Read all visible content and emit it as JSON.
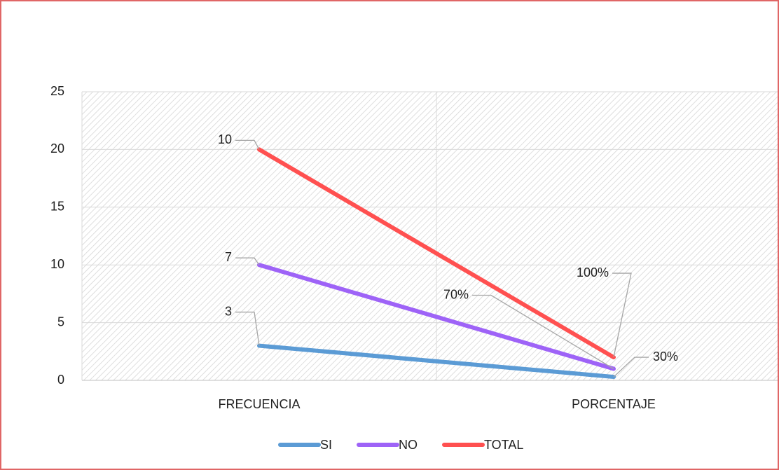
{
  "chart_data": {
    "type": "line",
    "stacked": true,
    "categories": [
      "FRECUENCIA",
      "PORCENTAJE"
    ],
    "series": [
      {
        "name": "SI",
        "color": "#5b9bd5",
        "values": [
          3,
          0.3
        ],
        "value_labels": [
          "3",
          "30%"
        ]
      },
      {
        "name": "NO",
        "color": "#9e63f7",
        "values": [
          7,
          0.7
        ],
        "value_labels": [
          "7",
          "70%"
        ]
      },
      {
        "name": "TOTAL",
        "color": "#ff5050",
        "values": [
          10,
          1
        ],
        "value_labels": [
          "10",
          "100%"
        ]
      }
    ],
    "ylim": [
      0,
      25
    ],
    "yticks": [
      0,
      5,
      10,
      15,
      20,
      25
    ],
    "grid": true,
    "legend": "bottom"
  }
}
